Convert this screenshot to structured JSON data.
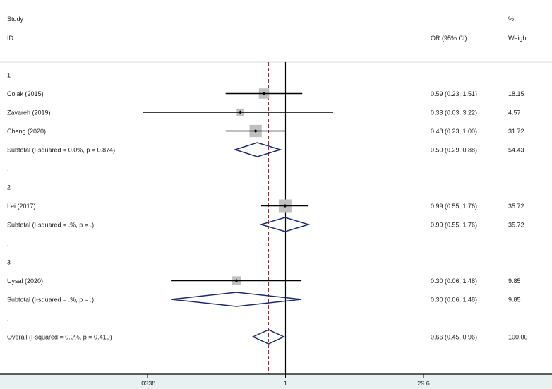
{
  "header": {
    "study_label": "Study",
    "id_label": "ID",
    "or_label": "OR (95% CI)",
    "pct_label": "%",
    "weight_label": "Weight"
  },
  "colors": {
    "ci_line": "#000000",
    "weight_box": "#c0c0c0",
    "diamond": "#1b2a6b",
    "null_line": "#000000",
    "overall_line": "#b22222",
    "bottom_band": "#e8f0f0"
  },
  "chart_data": {
    "type": "forest",
    "scale": "log",
    "xlim": [
      0.0338,
      29.6
    ],
    "xticks": [
      {
        "value": 0.0338,
        "label": ".0338"
      },
      {
        "value": 1,
        "label": "1"
      },
      {
        "value": 29.6,
        "label": "29.6"
      }
    ],
    "null_value": 1,
    "overall_estimate": 0.66,
    "rows": [
      {
        "kind": "group",
        "label": "1"
      },
      {
        "kind": "study",
        "label": "Colak (2015)",
        "or": 0.59,
        "lo": 0.23,
        "hi": 1.51,
        "ci_text": "0.59 (0.23, 1.51)",
        "weight": 18.15,
        "weight_text": "18.15"
      },
      {
        "kind": "study",
        "label": "Zavareh (2019)",
        "or": 0.33,
        "lo": 0.03,
        "hi": 3.22,
        "ci_text": "0.33 (0.03, 3.22)",
        "weight": 4.57,
        "weight_text": "4.57"
      },
      {
        "kind": "study",
        "label": "Cheng (2020)",
        "or": 0.48,
        "lo": 0.23,
        "hi": 1.0,
        "ci_text": "0.48 (0.23, 1.00)",
        "weight": 31.72,
        "weight_text": "31.72"
      },
      {
        "kind": "subtotal",
        "label": "Subtotal  (I-squared = 0.0%, p = 0.874)",
        "or": 0.5,
        "lo": 0.29,
        "hi": 0.88,
        "ci_text": "0.50 (0.29, 0.88)",
        "weight_text": "54.43"
      },
      {
        "kind": "dot",
        "label": "."
      },
      {
        "kind": "group",
        "label": "2"
      },
      {
        "kind": "study",
        "label": "Lei (2017)",
        "or": 0.99,
        "lo": 0.55,
        "hi": 1.76,
        "ci_text": "0.99 (0.55, 1.76)",
        "weight": 35.72,
        "weight_text": "35.72"
      },
      {
        "kind": "subtotal",
        "label": "Subtotal  (I-squared = .%, p = .)",
        "or": 0.99,
        "lo": 0.55,
        "hi": 1.76,
        "ci_text": "0.99 (0.55, 1.76)",
        "weight_text": "35.72"
      },
      {
        "kind": "dot",
        "label": "."
      },
      {
        "kind": "group",
        "label": "3"
      },
      {
        "kind": "study",
        "label": "Uysal (2020)",
        "or": 0.3,
        "lo": 0.06,
        "hi": 1.48,
        "ci_text": "0.30 (0.06, 1.48)",
        "weight": 9.85,
        "weight_text": "9.85"
      },
      {
        "kind": "subtotal",
        "label": "Subtotal  (I-squared = .%, p = .)",
        "or": 0.3,
        "lo": 0.06,
        "hi": 1.48,
        "ci_text": "0.30 (0.06, 1.48)",
        "weight_text": "9.85"
      },
      {
        "kind": "dot",
        "label": "."
      },
      {
        "kind": "overall",
        "label": "Overall  (I-squared = 0.0%, p = 0.410)",
        "or": 0.66,
        "lo": 0.45,
        "hi": 0.96,
        "ci_text": "0.66 (0.45, 0.96)",
        "weight_text": "100.00"
      }
    ]
  }
}
